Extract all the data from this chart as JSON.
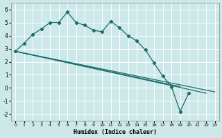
{
  "xlabel": "Humidex (Indice chaleur)",
  "bg_color": "#cce8e8",
  "grid_color": "#ffffff",
  "line_color": "#1a6b6b",
  "xlim": [
    -0.5,
    23.5
  ],
  "ylim": [
    -2.5,
    6.5
  ],
  "xticks": [
    0,
    1,
    2,
    3,
    4,
    5,
    6,
    7,
    8,
    9,
    10,
    11,
    12,
    13,
    14,
    15,
    16,
    17,
    18,
    19,
    20,
    21,
    22,
    23
  ],
  "yticks": [
    -2,
    -1,
    0,
    1,
    2,
    3,
    4,
    5,
    6
  ],
  "curve_x": [
    0,
    1,
    2,
    3,
    4,
    5,
    6,
    7,
    8,
    9,
    10,
    11,
    12,
    13,
    14,
    15,
    16,
    17,
    18,
    19,
    20
  ],
  "curve_y": [
    2.8,
    3.4,
    4.1,
    4.5,
    5.0,
    5.0,
    5.8,
    5.0,
    4.8,
    4.4,
    4.3,
    5.1,
    4.6,
    4.0,
    3.6,
    2.9,
    1.9,
    0.9,
    0.1,
    -1.8,
    -0.4
  ],
  "line1_x": [
    0,
    19
  ],
  "line1_y": [
    2.8,
    0.1
  ],
  "line2_x": [
    0,
    22
  ],
  "line2_y": [
    2.8,
    -0.4
  ],
  "line3_x": [
    0,
    23
  ],
  "line3_y": [
    2.8,
    -0.3
  ]
}
